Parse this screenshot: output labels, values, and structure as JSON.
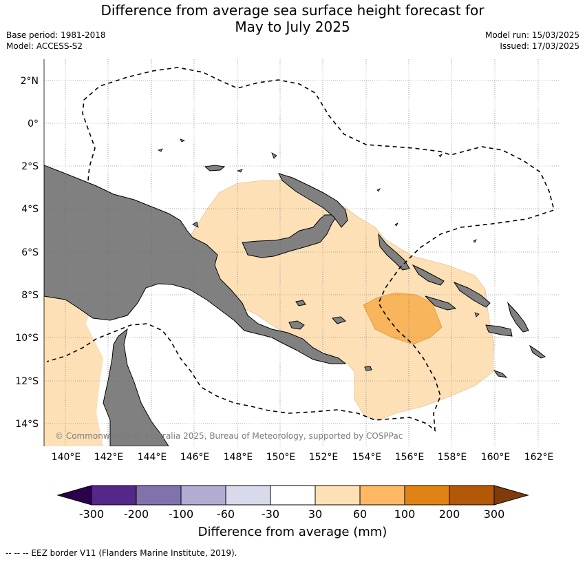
{
  "header": {
    "title_line1": "Difference from average sea surface height forecast for",
    "title_line2": "May to July 2025",
    "base_period": "Base period: 1981-2018",
    "model": "Model: ACCESS-S2",
    "model_run": "Model run: 15/03/2025",
    "issued": "Issued: 17/03/2025"
  },
  "map": {
    "lat_labels": [
      "2°N",
      "0°",
      "2°S",
      "4°S",
      "6°S",
      "8°S",
      "10°S",
      "12°S",
      "14°S"
    ],
    "lon_labels": [
      "140°E",
      "142°E",
      "144°E",
      "146°E",
      "148°E",
      "150°E",
      "152°E",
      "154°E",
      "156°E",
      "158°E",
      "160°E",
      "162°E"
    ],
    "copyright": "© Commonwealth of Australia 2025, Bureau of Meteorology, supported by COSPPac",
    "colors": {
      "land": "#808080",
      "anomaly_30_60": "#fee0b6",
      "anomaly_60_100": "#f8b55b",
      "eez_border": "#000000"
    }
  },
  "colorbar": {
    "title": "Difference from average (mm)",
    "tick_labels": [
      "-300",
      "-200",
      "-100",
      "-60",
      "-30",
      "30",
      "60",
      "100",
      "200",
      "300"
    ],
    "colors": [
      "#2d004b",
      "#542788",
      "#8073ac",
      "#b2abd2",
      "#d8daeb",
      "#ffffff",
      "#fee0b6",
      "#fdb863",
      "#e08214",
      "#b35806",
      "#7f3b08"
    ]
  },
  "footnote": "-- -- -- EEZ border V11 (Flanders Marine Institute, 2019)."
}
